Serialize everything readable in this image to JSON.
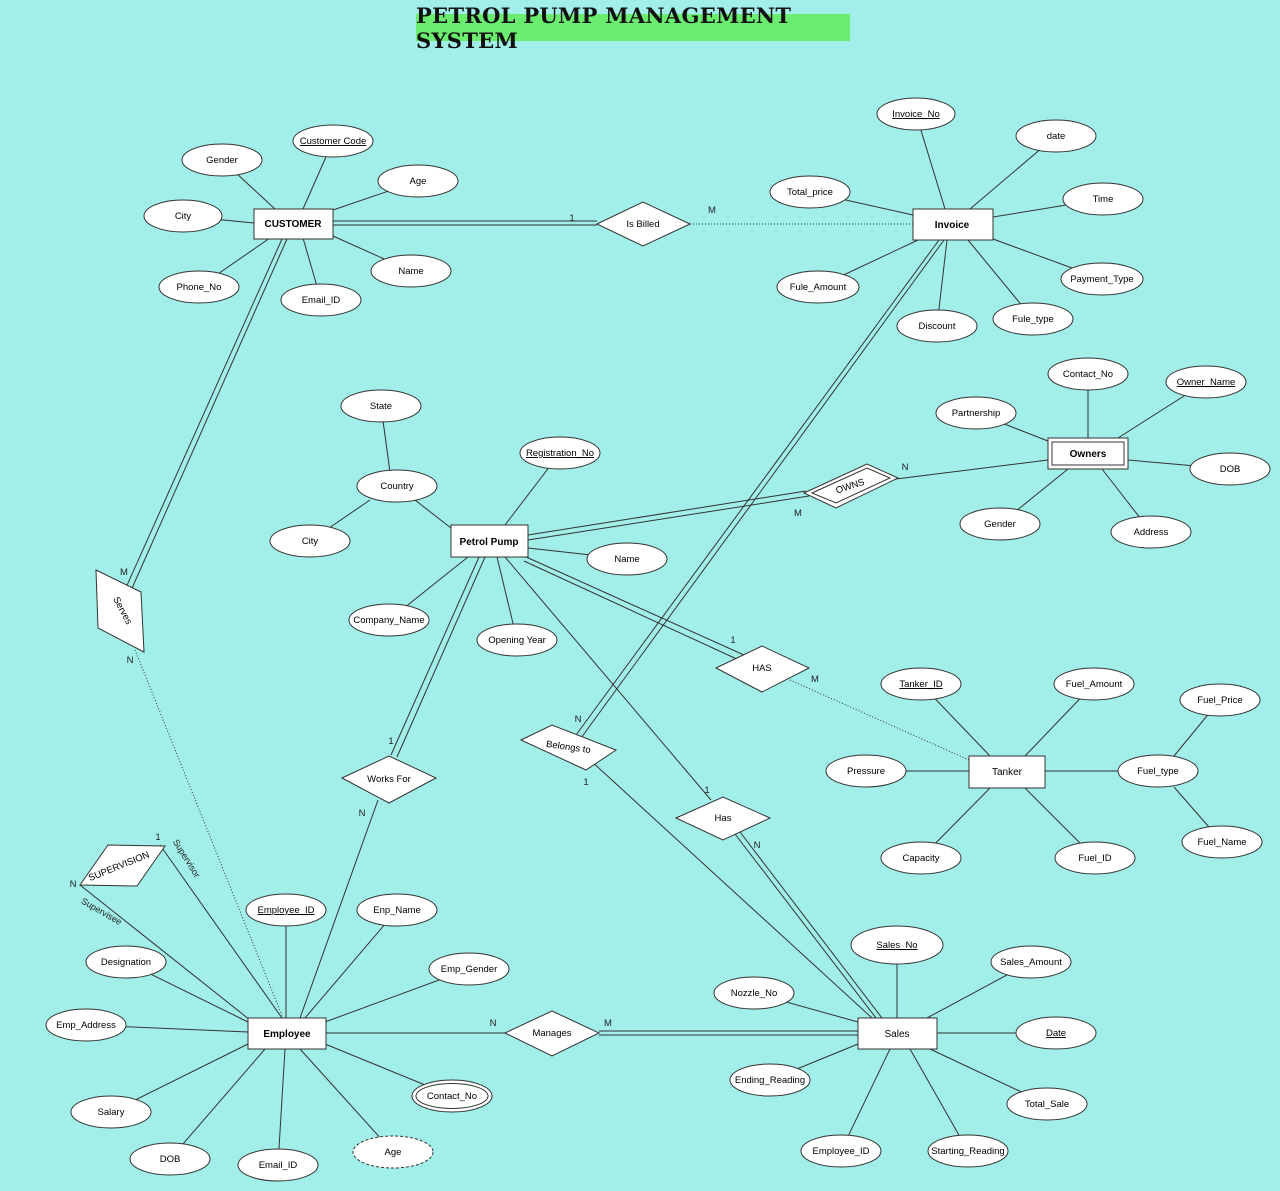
{
  "title": "PETROL PUMP MANAGEMENT SYSTEM",
  "colors": {
    "background": "#a2eee8",
    "title_bg": "#6bee6f",
    "shape_fill": "#ffffff",
    "stroke": "#333333"
  },
  "entities": {
    "customer": "CUSTOMER",
    "invoice": "Invoice",
    "owners": "Owners",
    "petrol_pump": "Petrol Pump",
    "tanker": "Tanker",
    "employee": "Employee",
    "sales": "Sales"
  },
  "relationships": {
    "is_billed": "Is Billed",
    "owns": "OWNS",
    "serves": "Serves",
    "has_tanker": "HAS",
    "belongs_to": "Belongs to",
    "works_for": "Works For",
    "has_sales": "Has",
    "supervision": "SUPERVISION",
    "manages": "Manages"
  },
  "attributes": {
    "customer": {
      "gender": "Gender",
      "customer_code": "Customer Code",
      "age": "Age",
      "city": "City",
      "name": "Name",
      "phone_no": "Phone_No",
      "email_id": "Email_ID"
    },
    "invoice": {
      "invoice_no": "Invoice_No",
      "date": "date",
      "total_price": "Total_price",
      "time": "Time",
      "payment_type": "Payment_Type",
      "fule_amount": "Fule_Amount",
      "fule_type": "Fule_type",
      "discount": "Discount"
    },
    "owners": {
      "contact_no": "Contact_No",
      "owner_name": "Owner_Name",
      "partnership": "Partnership",
      "dob": "DOB",
      "gender": "Gender",
      "address": "Address"
    },
    "petrol_pump": {
      "state": "State",
      "country": "Country",
      "registration_no": "Registration_No",
      "city": "City",
      "name": "Name",
      "company_name": "Company_Name",
      "opening_year": "Opening Year"
    },
    "tanker": {
      "tanker_id": "Tanker_ID",
      "fuel_amount": "Fuel_Amount",
      "fuel_price": "Fuel_Price",
      "pressure": "Pressure",
      "fuel_type": "Fuel_type",
      "capacity": "Capacity",
      "fuel_id": "Fuel_ID",
      "fuel_name": "Fuel_Name"
    },
    "employee": {
      "employee_id": "Employee_ID",
      "enp_name": "Enp_Name",
      "emp_gender": "Emp_Gender",
      "designation": "Designation",
      "emp_address": "Emp_Address",
      "contact_no": "Contact_No",
      "salary": "Salary",
      "dob": "DOB",
      "email_id": "Email_ID",
      "age": "Age"
    },
    "sales": {
      "sales_no": "Sales_No",
      "sales_amount": "Sales_Amount",
      "nozzle_no": "Nozzle_No",
      "date": "Date",
      "ending_reading": "Ending_Reading",
      "total_sale": "Total_Sale",
      "employee_id": "Employee_ID",
      "starting_reading": "Starting_Reading"
    }
  },
  "cardinalities": {
    "is_billed_customer": "1",
    "is_billed_invoice": "M",
    "owns_owners": "N",
    "owns_pump": "M",
    "serves_customer": "M",
    "serves_employee": "N",
    "has_pump": "1",
    "has_tanker": "M",
    "belongs_invoice": "N",
    "belongs_sales": "1",
    "works_pump": "1",
    "works_employee": "N",
    "has_sales_pump": "1",
    "has_sales_sales": "N",
    "supervision_left": "N",
    "supervision_right": "1",
    "manages_employee": "N",
    "manages_sales": "M"
  },
  "role_labels": {
    "supervisor": "Supervisor",
    "supervisee": "Supervisee"
  }
}
